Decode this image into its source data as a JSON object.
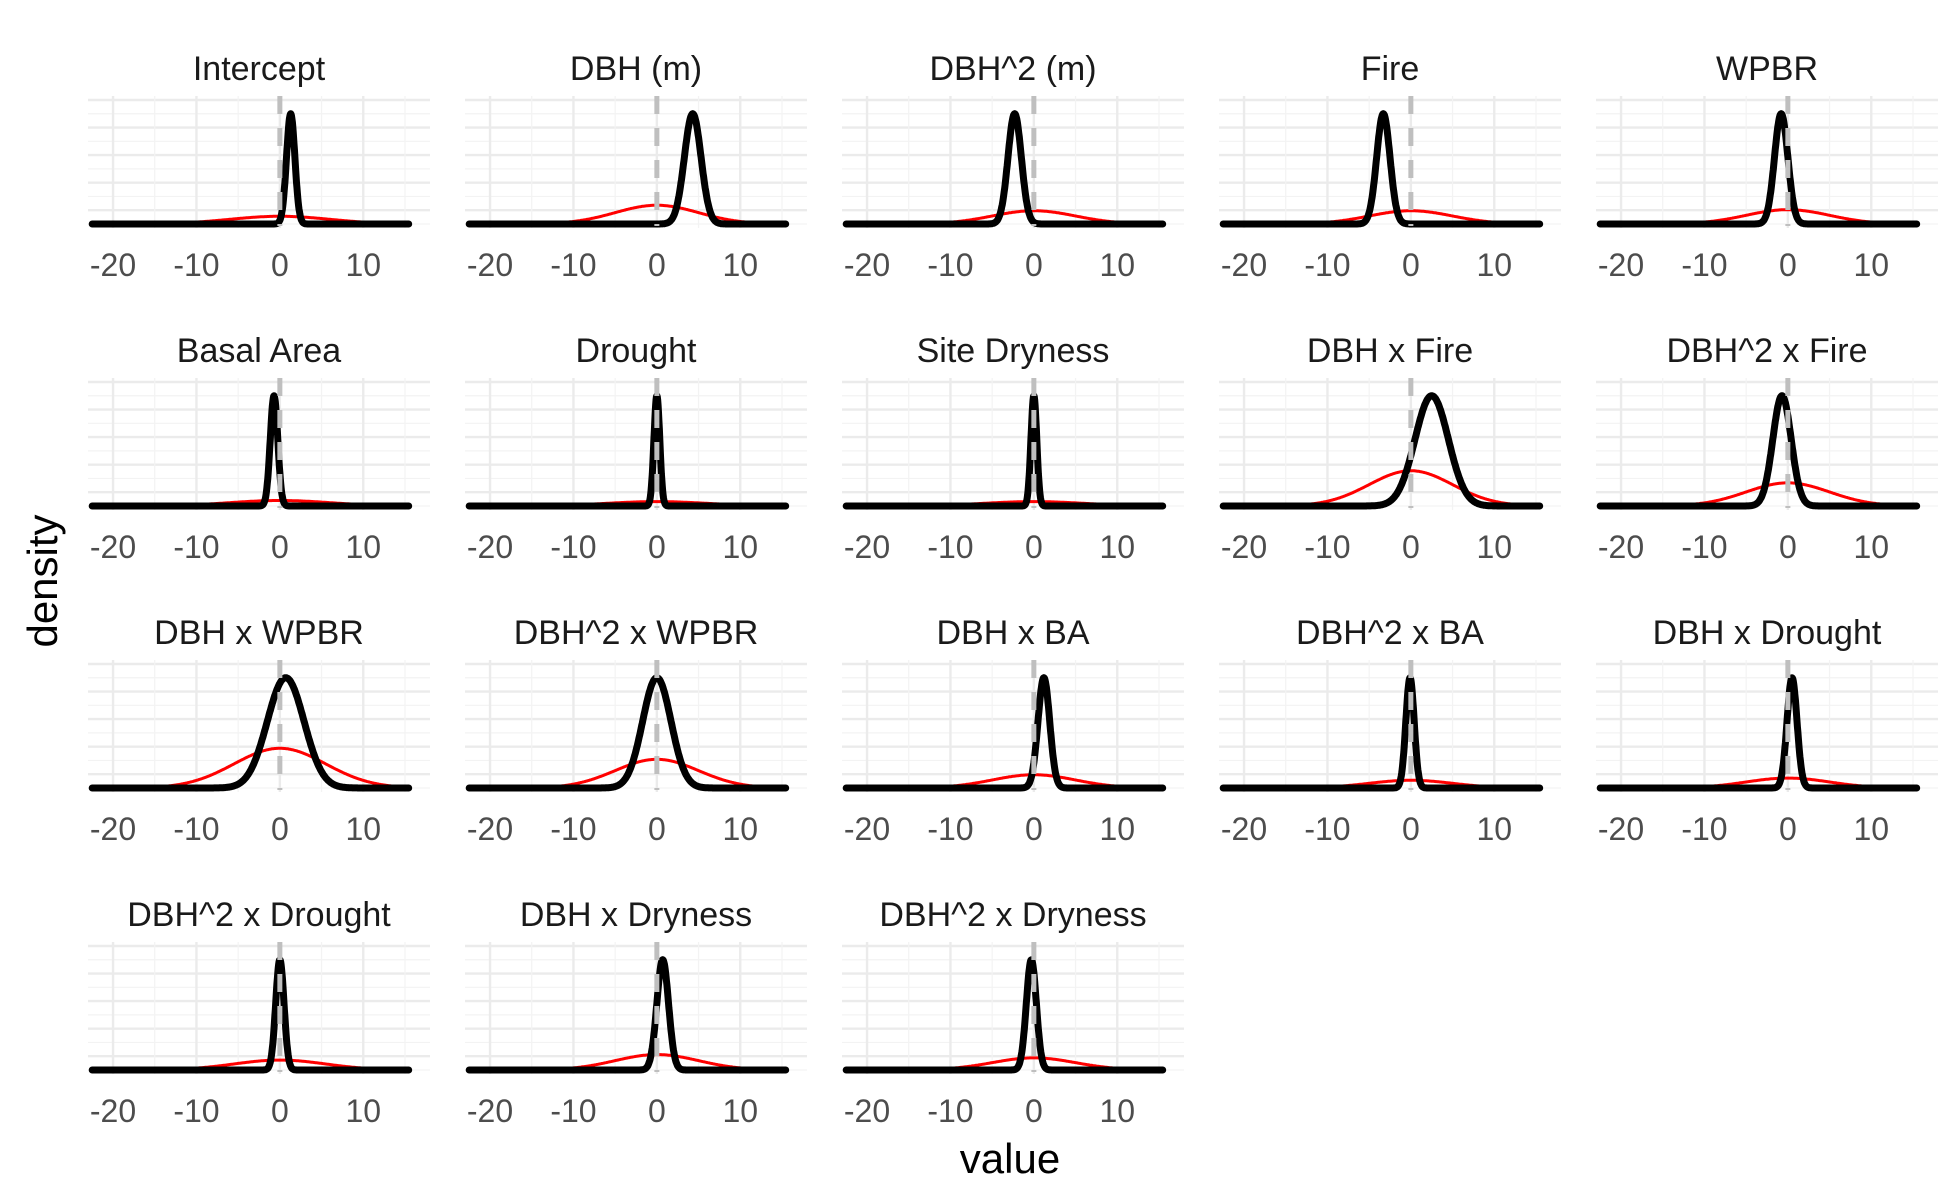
{
  "chart_data": {
    "type": "line",
    "xlabel": "value",
    "ylabel": "density",
    "xlim": [
      -23,
      18
    ],
    "x_ticks": [
      -20,
      -10,
      0,
      10
    ],
    "x_tick_labels": [
      "-20",
      "-10",
      "0",
      "10"
    ],
    "grid": true,
    "reference_line": {
      "x": 0,
      "style": "dashed",
      "color": "#bfbfbf"
    },
    "series_styles": {
      "posterior": {
        "color": "#000000"
      },
      "prior": {
        "color": "#ff0000"
      }
    },
    "panels": [
      {
        "title": "Intercept",
        "posterior": {
          "mean": 1.3,
          "sd": 0.5,
          "peak": 1.0
        },
        "prior": {
          "mean": 0,
          "sd": 6,
          "peak": 0.07
        }
      },
      {
        "title": "DBH (m)",
        "posterior": {
          "mean": 4.3,
          "sd": 1.0,
          "peak": 1.0
        },
        "prior": {
          "mean": 0,
          "sd": 5,
          "peak": 0.17
        }
      },
      {
        "title": "DBH^2 (m)",
        "posterior": {
          "mean": -2.3,
          "sd": 0.8,
          "peak": 1.0
        },
        "prior": {
          "mean": 0,
          "sd": 5,
          "peak": 0.12
        }
      },
      {
        "title": "Fire",
        "posterior": {
          "mean": -3.3,
          "sd": 0.8,
          "peak": 1.0
        },
        "prior": {
          "mean": 0,
          "sd": 5,
          "peak": 0.12
        }
      },
      {
        "title": "WPBR",
        "posterior": {
          "mean": -0.8,
          "sd": 0.8,
          "peak": 1.0
        },
        "prior": {
          "mean": 0,
          "sd": 5,
          "peak": 0.13
        }
      },
      {
        "title": "Basal Area",
        "posterior": {
          "mean": -0.7,
          "sd": 0.45,
          "peak": 1.0
        },
        "prior": {
          "mean": 0,
          "sd": 6,
          "peak": 0.05
        }
      },
      {
        "title": "Drought",
        "posterior": {
          "mean": 0,
          "sd": 0.35,
          "peak": 1.0
        },
        "prior": {
          "mean": 0,
          "sd": 6,
          "peak": 0.04
        }
      },
      {
        "title": "Site Dryness",
        "posterior": {
          "mean": 0,
          "sd": 0.35,
          "peak": 1.0
        },
        "prior": {
          "mean": 0,
          "sd": 6,
          "peak": 0.04
        }
      },
      {
        "title": "DBH x Fire",
        "posterior": {
          "mean": 2.5,
          "sd": 2.0,
          "peak": 1.0
        },
        "prior": {
          "mean": 0,
          "sd": 5,
          "peak": 0.32
        }
      },
      {
        "title": "DBH^2 x Fire",
        "posterior": {
          "mean": -0.7,
          "sd": 1.1,
          "peak": 1.0
        },
        "prior": {
          "mean": 0,
          "sd": 5,
          "peak": 0.21
        }
      },
      {
        "title": "DBH x WPBR",
        "posterior": {
          "mean": 0.7,
          "sd": 2.2,
          "peak": 1.0
        },
        "prior": {
          "mean": 0,
          "sd": 5.5,
          "peak": 0.36
        }
      },
      {
        "title": "DBH^2 x WPBR",
        "posterior": {
          "mean": 0,
          "sd": 1.7,
          "peak": 1.0
        },
        "prior": {
          "mean": 0,
          "sd": 5,
          "peak": 0.26
        }
      },
      {
        "title": "DBH x BA",
        "posterior": {
          "mean": 1.2,
          "sd": 0.7,
          "peak": 1.0
        },
        "prior": {
          "mean": 0,
          "sd": 5,
          "peak": 0.12
        }
      },
      {
        "title": "DBH^2 x BA",
        "posterior": {
          "mean": -0.1,
          "sd": 0.5,
          "peak": 1.0
        },
        "prior": {
          "mean": 0,
          "sd": 5,
          "peak": 0.07
        }
      },
      {
        "title": "DBH x Drought",
        "posterior": {
          "mean": 0.5,
          "sd": 0.6,
          "peak": 1.0
        },
        "prior": {
          "mean": 0,
          "sd": 5,
          "peak": 0.09
        }
      },
      {
        "title": "DBH^2 x Drought",
        "posterior": {
          "mean": 0,
          "sd": 0.5,
          "peak": 1.0
        },
        "prior": {
          "mean": 0,
          "sd": 5.5,
          "peak": 0.09
        }
      },
      {
        "title": "DBH x Dryness",
        "posterior": {
          "mean": 0.7,
          "sd": 0.7,
          "peak": 1.0
        },
        "prior": {
          "mean": 0,
          "sd": 5,
          "peak": 0.14
        }
      },
      {
        "title": "DBH^2 x Dryness",
        "posterior": {
          "mean": -0.3,
          "sd": 0.6,
          "peak": 1.0
        },
        "prior": {
          "mean": 0,
          "sd": 5,
          "peak": 0.11
        }
      }
    ]
  }
}
